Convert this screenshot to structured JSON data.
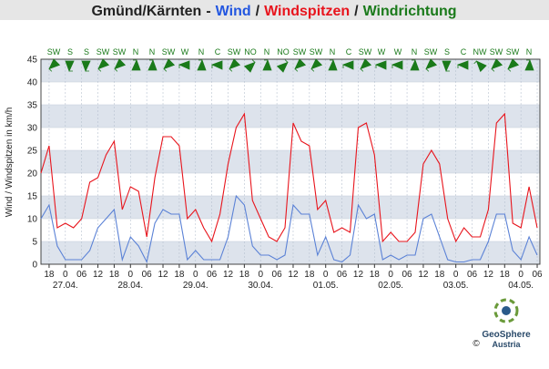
{
  "chart_data": {
    "type": "line",
    "title": "Gmünd/Kärnten",
    "title_separators": [
      "-",
      "/",
      "/"
    ],
    "ylabel": "Wind / Windspitzen in km/h",
    "x": [
      -9,
      -6,
      -3,
      0,
      3,
      6,
      9,
      12,
      15,
      18,
      21,
      24,
      27,
      30,
      33,
      36,
      39,
      42,
      45,
      48,
      51,
      54,
      57,
      60,
      63,
      66,
      69,
      72,
      75,
      78,
      81,
      84,
      87,
      90,
      93,
      96,
      99,
      102,
      105,
      108,
      111,
      114,
      117,
      120,
      123,
      126,
      129,
      132,
      135,
      138,
      141,
      144,
      147,
      150,
      153,
      156,
      159,
      162,
      165,
      168,
      171,
      174
    ],
    "series": [
      {
        "name": "Wind",
        "color": "#5b82d6",
        "title_color": "#2256e0",
        "values": [
          10,
          13,
          4,
          1,
          1,
          1,
          3,
          8,
          10,
          12,
          1,
          6,
          4,
          0.5,
          9,
          12,
          11,
          11,
          1,
          3,
          1,
          1,
          1,
          6,
          15,
          13,
          4,
          2,
          2,
          1,
          2,
          13,
          11,
          11,
          2,
          6,
          1,
          0.5,
          2,
          13,
          10,
          11,
          1,
          2,
          1,
          2,
          2,
          10,
          11,
          6,
          1,
          0.5,
          0.5,
          1,
          1,
          5,
          11,
          11,
          3,
          1,
          6,
          2
        ]
      },
      {
        "name": "Windspitzen",
        "color": "#e8141c",
        "title_color": "#e8141c",
        "values": [
          20,
          26,
          8,
          9,
          8,
          10,
          18,
          19,
          24,
          27,
          12,
          17,
          16,
          6,
          19,
          28,
          28,
          26,
          10,
          12,
          8,
          5,
          11,
          22,
          30,
          33,
          14,
          10,
          6,
          5,
          8,
          31,
          27,
          26,
          12,
          14,
          7,
          8,
          7,
          30,
          31,
          24,
          5,
          7,
          5,
          5,
          7,
          22,
          25,
          22,
          10,
          5,
          8,
          6,
          6,
          12,
          31,
          33,
          9,
          8,
          17,
          8
        ]
      }
    ],
    "directions": {
      "name": "Windrichtung",
      "color": "#1a7a1a",
      "labels": [
        "SW",
        "S",
        "S",
        "SW",
        "SW",
        "N",
        "N",
        "SW",
        "W",
        "N",
        "C",
        "SW",
        "NO",
        "N",
        "NO",
        "SW",
        "SW",
        "N",
        "C",
        "SW",
        "W",
        "W",
        "N",
        "SW",
        "S",
        "C",
        "NW",
        "SW",
        "SW",
        "N"
      ]
    },
    "xlim": [
      -9,
      175
    ],
    "xticks": [
      {
        "value": -6,
        "label": "18"
      },
      {
        "value": 0,
        "label": "0"
      },
      {
        "value": 6,
        "label": "06"
      },
      {
        "value": 12,
        "label": "12"
      },
      {
        "value": 18,
        "label": "18"
      },
      {
        "value": 24,
        "label": "0"
      },
      {
        "value": 30,
        "label": "06"
      },
      {
        "value": 36,
        "label": "12"
      },
      {
        "value": 42,
        "label": "18"
      },
      {
        "value": 48,
        "label": "0"
      },
      {
        "value": 54,
        "label": "06"
      },
      {
        "value": 60,
        "label": "12"
      },
      {
        "value": 66,
        "label": "18"
      },
      {
        "value": 72,
        "label": "0"
      },
      {
        "value": 78,
        "label": "06"
      },
      {
        "value": 84,
        "label": "12"
      },
      {
        "value": 90,
        "label": "18"
      },
      {
        "value": 96,
        "label": "0"
      },
      {
        "value": 102,
        "label": "06"
      },
      {
        "value": 108,
        "label": "12"
      },
      {
        "value": 114,
        "label": "18"
      },
      {
        "value": 120,
        "label": "0"
      },
      {
        "value": 126,
        "label": "06"
      },
      {
        "value": 132,
        "label": "12"
      },
      {
        "value": 138,
        "label": "18"
      },
      {
        "value": 144,
        "label": "0"
      },
      {
        "value": 150,
        "label": "06"
      },
      {
        "value": 156,
        "label": "12"
      },
      {
        "value": 162,
        "label": "18"
      },
      {
        "value": 168,
        "label": "0"
      },
      {
        "value": 174,
        "label": "06"
      }
    ],
    "date_labels": [
      {
        "value": 0,
        "label": "27.04."
      },
      {
        "value": 24,
        "label": "28.04."
      },
      {
        "value": 48,
        "label": "29.04."
      },
      {
        "value": 72,
        "label": "30.04."
      },
      {
        "value": 96,
        "label": "01.05."
      },
      {
        "value": 120,
        "label": "02.05."
      },
      {
        "value": 144,
        "label": "03.05."
      },
      {
        "value": 168,
        "label": "04.05."
      }
    ],
    "ylim": [
      0,
      45
    ],
    "yticks": [
      0,
      5,
      10,
      15,
      20,
      25,
      30,
      35,
      40,
      45
    ],
    "grid": true,
    "footer": {
      "logo": "GeoSphere",
      "logo_sub": "Austria",
      "copyright": "©"
    }
  }
}
